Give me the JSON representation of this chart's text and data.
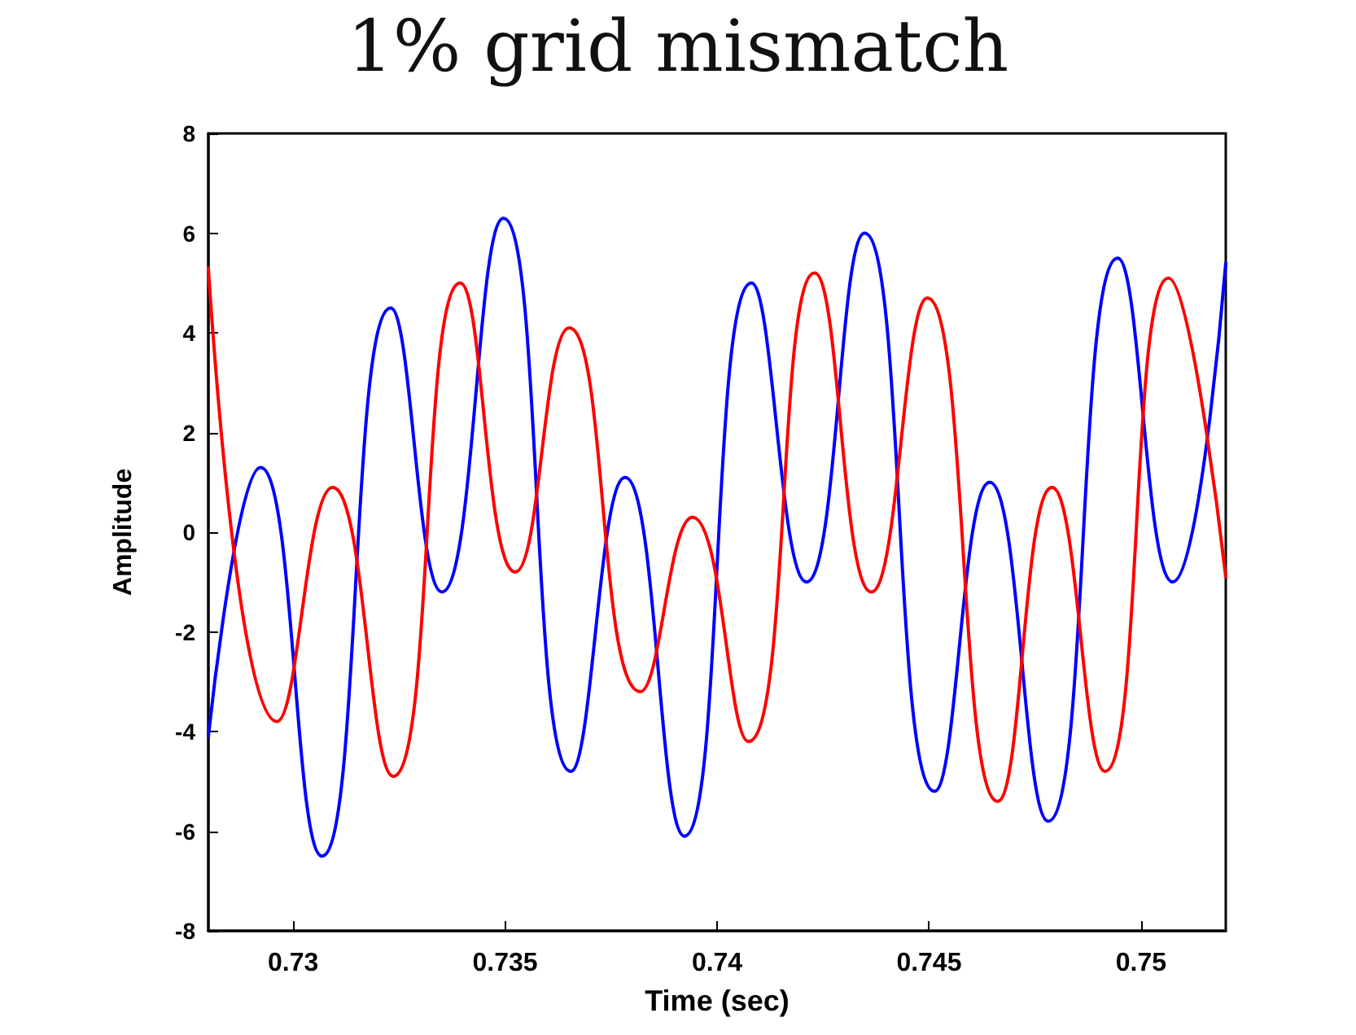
{
  "chart_data": {
    "type": "line",
    "title": "1% grid mismatch",
    "xlabel": "Time (sec)",
    "ylabel": "Amplitude",
    "xlim": [
      0.728,
      0.752
    ],
    "xticks": [
      0.73,
      0.735,
      0.74,
      0.745,
      0.75
    ],
    "ylim": [
      -8,
      8
    ],
    "yticks": [
      -8,
      -6,
      -4,
      -2,
      0,
      2,
      4,
      6,
      8
    ],
    "grid": false,
    "marker": "none",
    "line_style": "solid",
    "series": [
      {
        "color": "#0000ff",
        "x": [
          0.728,
          0.72923,
          0.73068,
          0.7323,
          0.73351,
          0.73496,
          0.73655,
          0.73783,
          0.73923,
          0.74081,
          0.74211,
          0.74348,
          0.74513,
          0.74643,
          0.74781,
          0.74945,
          0.75075,
          0.752
        ],
        "values": [
          -4.1,
          1.3,
          -6.5,
          4.5,
          -1.2,
          6.3,
          -4.8,
          1.1,
          -6.1,
          5.0,
          -1.0,
          6.0,
          -5.2,
          1.0,
          -5.8,
          5.5,
          -1.0,
          5.4
        ]
      },
      {
        "color": "#ff0000",
        "x": [
          0.728,
          0.72962,
          0.73093,
          0.73236,
          0.73394,
          0.73524,
          0.73651,
          0.73819,
          0.73942,
          0.74074,
          0.7423,
          0.74364,
          0.74496,
          0.74662,
          0.7479,
          0.74915,
          0.75065,
          0.752
        ],
        "values": [
          5.3,
          -3.8,
          0.9,
          -4.9,
          5.0,
          -0.8,
          4.1,
          -3.2,
          0.3,
          -4.2,
          5.2,
          -1.2,
          4.7,
          -5.4,
          0.9,
          -4.8,
          5.1,
          -0.9
        ]
      }
    ]
  }
}
